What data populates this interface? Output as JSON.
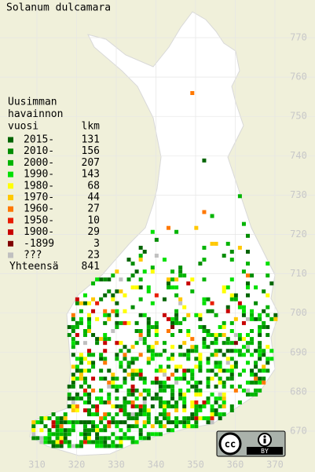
{
  "title": "Solanum dulcamara",
  "legend": {
    "header": [
      "Uusimman",
      "havainnon",
      "vuosi"
    ],
    "count_header": "lkm",
    "entries": [
      {
        "label": "2015-",
        "count": 131,
        "color": "#006400"
      },
      {
        "label": "2010-",
        "count": 156,
        "color": "#008c00"
      },
      {
        "label": "2000-",
        "count": 207,
        "color": "#00b400"
      },
      {
        "label": "1990-",
        "count": 143,
        "color": "#00e000"
      },
      {
        "label": "1980-",
        "count": 68,
        "color": "#ffff00"
      },
      {
        "label": "1970-",
        "count": 44,
        "color": "#ffc800"
      },
      {
        "label": "1960-",
        "count": 27,
        "color": "#ff7800"
      },
      {
        "label": "1950-",
        "count": 10,
        "color": "#e81c00"
      },
      {
        "label": "1900-",
        "count": 29,
        "color": "#c80000"
      },
      {
        "label": "-1899",
        "count": 3,
        "color": "#800000"
      },
      {
        "label": "???",
        "count": 23,
        "color": "#c0c0c0"
      }
    ],
    "total": {
      "label": "Yhteensä",
      "count": 841
    }
  },
  "grid": {
    "y_labels": [
      770,
      760,
      750,
      740,
      730,
      720,
      710,
      700,
      690,
      680,
      670
    ],
    "x_labels": [
      310,
      320,
      330,
      340,
      350,
      360,
      370
    ]
  },
  "license": {
    "icon": "cc",
    "label": "BY"
  }
}
